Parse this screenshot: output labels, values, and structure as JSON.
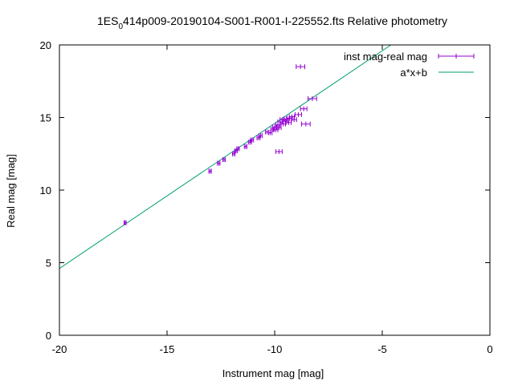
{
  "chart_data": {
    "type": "scatter",
    "title": {
      "prefix": "1ES",
      "subscript": "0",
      "rest": "414p009-20190104-S001-R001-I-225552.fts Relative photometry"
    },
    "xlabel": "Instrument mag [mag]",
    "ylabel": "Real mag [mag]",
    "xlim": [
      -20,
      0
    ],
    "ylim": [
      0,
      20
    ],
    "xticks": [
      -20,
      -15,
      -10,
      -5,
      0
    ],
    "yticks": [
      0,
      5,
      10,
      15,
      20
    ],
    "xtick_labels": [
      "-20",
      "-15",
      "-10",
      "-5",
      "0"
    ],
    "ytick_labels": [
      "0",
      "5",
      "10",
      "15",
      "20"
    ],
    "grid": false,
    "legend_position": "top-right",
    "series": [
      {
        "name": "inst mag-real mag",
        "kind": "points-with-xerror",
        "color": "#9400d3",
        "points": [
          {
            "x": -16.95,
            "y": 7.75,
            "xerr": 0.05
          },
          {
            "x": -13.0,
            "y": 11.3,
            "xerr": 0.06
          },
          {
            "x": -12.6,
            "y": 11.85,
            "xerr": 0.06
          },
          {
            "x": -12.35,
            "y": 12.1,
            "xerr": 0.06
          },
          {
            "x": -11.9,
            "y": 12.5,
            "xerr": 0.06
          },
          {
            "x": -11.8,
            "y": 12.7,
            "xerr": 0.06
          },
          {
            "x": -11.7,
            "y": 12.85,
            "xerr": 0.06
          },
          {
            "x": -11.35,
            "y": 13.0,
            "xerr": 0.06
          },
          {
            "x": -11.15,
            "y": 13.3,
            "xerr": 0.07
          },
          {
            "x": -11.05,
            "y": 13.45,
            "xerr": 0.07
          },
          {
            "x": -10.75,
            "y": 13.6,
            "xerr": 0.07
          },
          {
            "x": -10.65,
            "y": 13.75,
            "xerr": 0.07
          },
          {
            "x": -10.35,
            "y": 14.0,
            "xerr": 0.08
          },
          {
            "x": -10.2,
            "y": 13.95,
            "xerr": 0.08
          },
          {
            "x": -10.1,
            "y": 14.2,
            "xerr": 0.08
          },
          {
            "x": -10.0,
            "y": 14.35,
            "xerr": 0.1
          },
          {
            "x": -9.95,
            "y": 14.15,
            "xerr": 0.1
          },
          {
            "x": -9.85,
            "y": 14.5,
            "xerr": 0.1
          },
          {
            "x": -9.8,
            "y": 14.3,
            "xerr": 0.1
          },
          {
            "x": -9.75,
            "y": 14.7,
            "xerr": 0.1
          },
          {
            "x": -9.65,
            "y": 14.85,
            "xerr": 0.1
          },
          {
            "x": -9.6,
            "y": 14.55,
            "xerr": 0.1
          },
          {
            "x": -9.5,
            "y": 14.75,
            "xerr": 0.1
          },
          {
            "x": -9.45,
            "y": 14.9,
            "xerr": 0.12
          },
          {
            "x": -9.35,
            "y": 14.65,
            "xerr": 0.12
          },
          {
            "x": -9.3,
            "y": 14.95,
            "xerr": 0.12
          },
          {
            "x": -9.2,
            "y": 15.05,
            "xerr": 0.12
          },
          {
            "x": -9.1,
            "y": 14.85,
            "xerr": 0.12
          },
          {
            "x": -8.9,
            "y": 15.2,
            "xerr": 0.15
          },
          {
            "x": -8.65,
            "y": 15.6,
            "xerr": 0.15
          },
          {
            "x": -8.55,
            "y": 14.55,
            "xerr": 0.2
          },
          {
            "x": -8.25,
            "y": 16.3,
            "xerr": 0.2
          },
          {
            "x": -8.8,
            "y": 18.5,
            "xerr": 0.2
          },
          {
            "x": -9.8,
            "y": 12.65,
            "xerr": 0.15
          }
        ]
      },
      {
        "name": "a*x+b",
        "kind": "line",
        "color": "#009e73",
        "slope": 1.0,
        "intercept": 24.6,
        "x_range": [
          -20,
          -4.6
        ]
      }
    ]
  }
}
